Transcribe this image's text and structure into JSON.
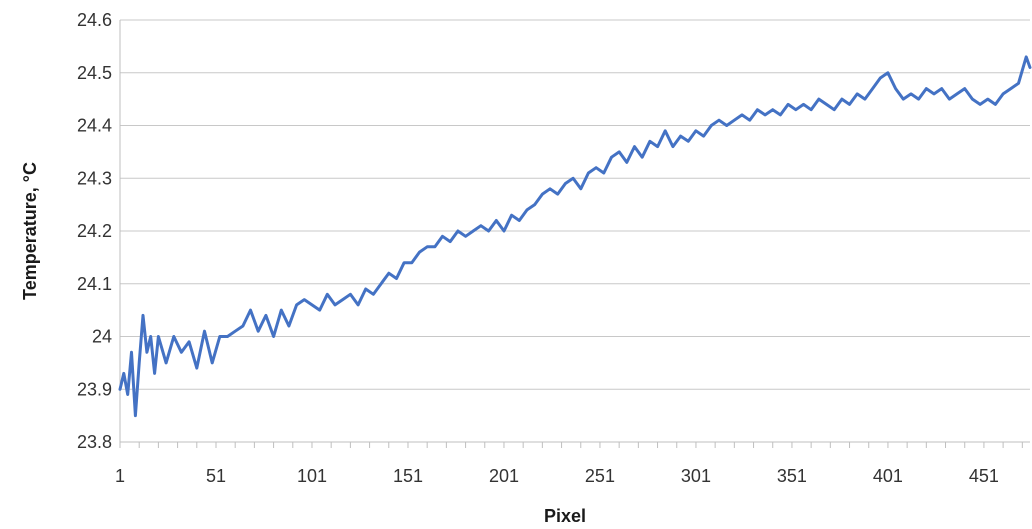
{
  "chart_data": {
    "type": "line",
    "xlabel": "Pixel",
    "ylabel": "Temperature, °C",
    "ylim": [
      23.8,
      24.6
    ],
    "xlim": [
      1,
      475
    ],
    "y_ticks": [
      "23.8",
      "23.9",
      "24",
      "24.1",
      "24.2",
      "24.3",
      "24.4",
      "24.5",
      "24.6"
    ],
    "x_ticks": [
      "1",
      "51",
      "101",
      "151",
      "201",
      "251",
      "301",
      "351",
      "401",
      "451"
    ],
    "grid": "horizontal",
    "legend": "none",
    "series": [
      {
        "color": "#4472C4",
        "x": [
          1,
          3,
          5,
          7,
          9,
          11,
          13,
          15,
          17,
          19,
          21,
          25,
          29,
          33,
          37,
          41,
          45,
          49,
          53,
          57,
          61,
          65,
          69,
          73,
          77,
          81,
          85,
          89,
          93,
          97,
          101,
          105,
          109,
          113,
          117,
          121,
          125,
          129,
          133,
          137,
          141,
          145,
          149,
          153,
          157,
          161,
          165,
          169,
          173,
          177,
          181,
          185,
          189,
          193,
          197,
          201,
          205,
          209,
          213,
          217,
          221,
          225,
          229,
          233,
          237,
          241,
          245,
          249,
          253,
          257,
          261,
          265,
          269,
          273,
          277,
          281,
          285,
          289,
          293,
          297,
          301,
          305,
          309,
          313,
          317,
          321,
          325,
          329,
          333,
          337,
          341,
          345,
          349,
          353,
          357,
          361,
          365,
          369,
          373,
          377,
          381,
          385,
          389,
          393,
          397,
          401,
          405,
          409,
          413,
          417,
          421,
          425,
          429,
          433,
          437,
          441,
          445,
          449,
          453,
          457,
          461,
          465,
          469,
          473,
          475
        ],
        "y": [
          23.9,
          23.93,
          23.89,
          23.97,
          23.85,
          23.95,
          24.04,
          23.97,
          24.0,
          23.93,
          24.0,
          23.95,
          24.0,
          23.97,
          23.99,
          23.94,
          24.01,
          23.95,
          24.0,
          24.0,
          24.01,
          24.02,
          24.05,
          24.01,
          24.04,
          24.0,
          24.05,
          24.02,
          24.06,
          24.07,
          24.06,
          24.05,
          24.08,
          24.06,
          24.07,
          24.08,
          24.06,
          24.09,
          24.08,
          24.1,
          24.12,
          24.11,
          24.14,
          24.14,
          24.16,
          24.17,
          24.17,
          24.19,
          24.18,
          24.2,
          24.19,
          24.2,
          24.21,
          24.2,
          24.22,
          24.2,
          24.23,
          24.22,
          24.24,
          24.25,
          24.27,
          24.28,
          24.27,
          24.29,
          24.3,
          24.28,
          24.31,
          24.32,
          24.31,
          24.34,
          24.35,
          24.33,
          24.36,
          24.34,
          24.37,
          24.36,
          24.39,
          24.36,
          24.38,
          24.37,
          24.39,
          24.38,
          24.4,
          24.41,
          24.4,
          24.41,
          24.42,
          24.41,
          24.43,
          24.42,
          24.43,
          24.42,
          24.44,
          24.43,
          24.44,
          24.43,
          24.45,
          24.44,
          24.43,
          24.45,
          24.44,
          24.46,
          24.45,
          24.47,
          24.49,
          24.5,
          24.47,
          24.45,
          24.46,
          24.45,
          24.47,
          24.46,
          24.47,
          24.45,
          24.46,
          24.47,
          24.45,
          24.44,
          24.45,
          24.44,
          24.46,
          24.47,
          24.48,
          24.53,
          24.51
        ]
      }
    ]
  }
}
